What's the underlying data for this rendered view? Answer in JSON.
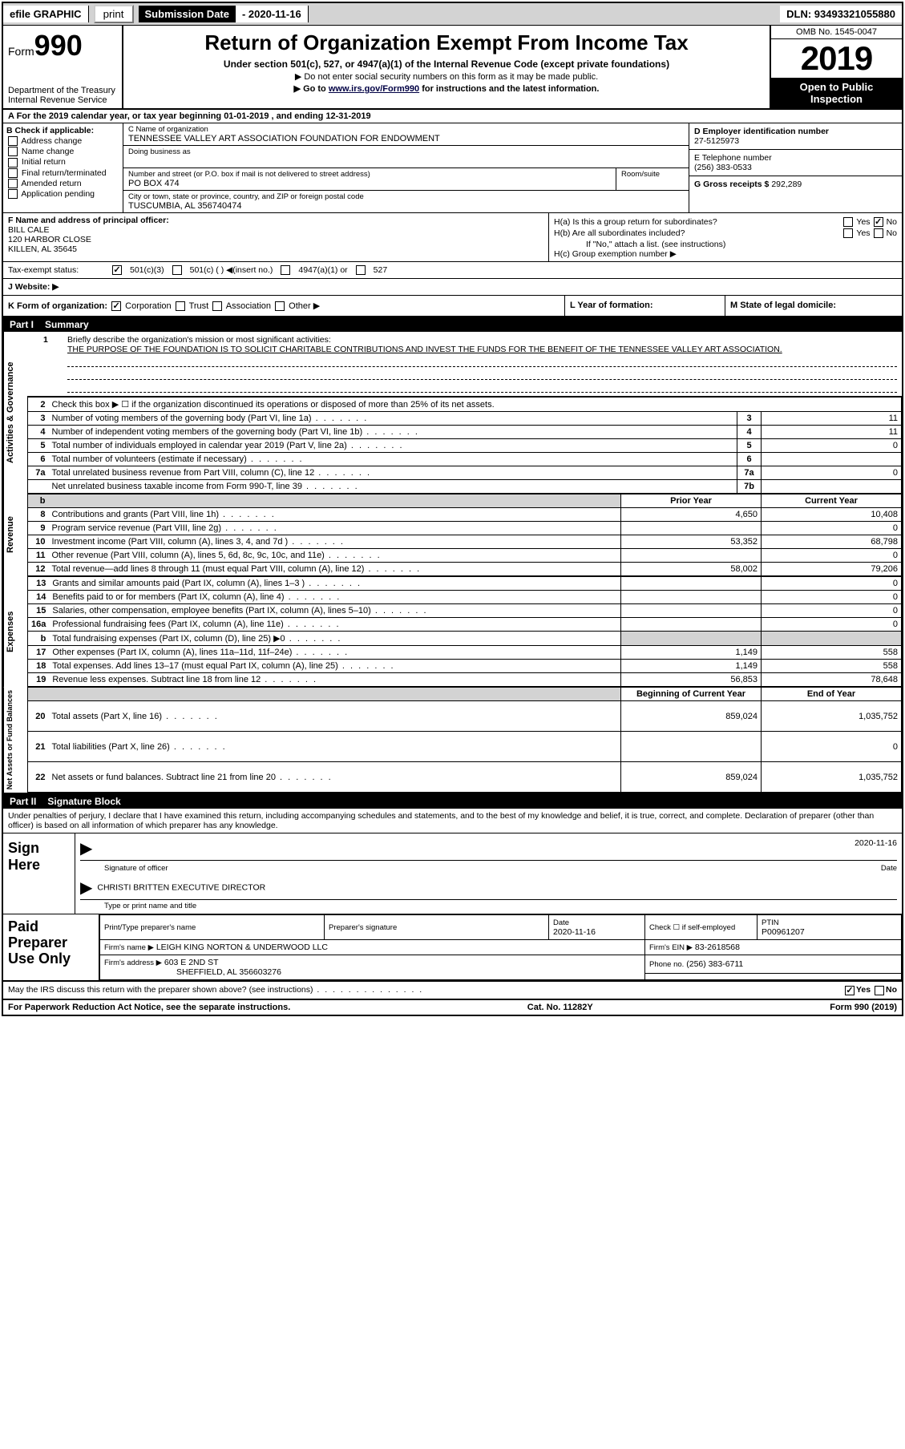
{
  "topbar": {
    "efile": "efile GRAPHIC",
    "print": "print",
    "sub_lbl": "Submission Date",
    "sub_val": "- 2020-11-16",
    "dln": "DLN: 93493321055880"
  },
  "header": {
    "form_word": "Form",
    "form_num": "990",
    "dept1": "Department of the Treasury",
    "dept2": "Internal Revenue Service",
    "title": "Return of Organization Exempt From Income Tax",
    "sub": "Under section 501(c), 527, or 4947(a)(1) of the Internal Revenue Code (except private foundations)",
    "instr1": "▶ Do not enter social security numbers on this form as it may be made public.",
    "instr2_a": "▶ Go to ",
    "instr2_link": "www.irs.gov/Form990",
    "instr2_b": " for instructions and the latest information.",
    "omb": "OMB No. 1545-0047",
    "year": "2019",
    "open": "Open to Public Inspection"
  },
  "sectA": "A For the 2019 calendar year, or tax year beginning 01-01-2019   , and ending 12-31-2019",
  "boxB": {
    "hdr": "B Check if applicable:",
    "items": [
      "Address change",
      "Name change",
      "Initial return",
      "Final return/terminated",
      "Amended return",
      "Application pending"
    ]
  },
  "boxC": {
    "name_lbl": "C Name of organization",
    "name": "TENNESSEE VALLEY ART ASSOCIATION FOUNDATION FOR ENDOWMENT",
    "dba_lbl": "Doing business as",
    "addr_lbl": "Number and street (or P.O. box if mail is not delivered to street address)",
    "addr": "PO BOX 474",
    "room_lbl": "Room/suite",
    "city_lbl": "City or town, state or province, country, and ZIP or foreign postal code",
    "city": "TUSCUMBIA, AL  356740474"
  },
  "boxD": {
    "lbl": "D Employer identification number",
    "val": "27-5125973"
  },
  "boxE": {
    "lbl": "E Telephone number",
    "val": "(256) 383-0533"
  },
  "boxG": {
    "lbl": "G Gross receipts $",
    "val": "292,289"
  },
  "boxF": {
    "lbl": "F Name and address of principal officer:",
    "name": "BILL CALE",
    "addr1": "120 HARBOR CLOSE",
    "addr2": "KILLEN, AL  35645"
  },
  "boxH": {
    "a": "H(a)  Is this a group return for subordinates?",
    "b": "H(b)  Are all subordinates included?",
    "b_note": "If \"No,\" attach a list. (see instructions)",
    "c": "H(c)  Group exemption number ▶",
    "yes": "Yes",
    "no": "No"
  },
  "taxex": {
    "lbl": "Tax-exempt status:",
    "o1": "501(c)(3)",
    "o2": "501(c) (  ) ◀(insert no.)",
    "o3": "4947(a)(1) or",
    "o4": "527"
  },
  "rowJ": "J   Website: ▶",
  "rowK": {
    "lbl": "K Form of organization:",
    "opts": [
      "Corporation",
      "Trust",
      "Association",
      "Other ▶"
    ],
    "L": "L Year of formation:",
    "M": "M State of legal domicile:"
  },
  "partI": {
    "hdr_pt": "Part I",
    "hdr_txt": "Summary"
  },
  "q1": {
    "num": "1",
    "lbl": "Briefly describe the organization's mission or most significant activities:",
    "text": "THE PURPOSE OF THE FOUNDATION IS TO SOLICIT CHARITABLE CONTRIBUTIONS AND INVEST THE FUNDS FOR THE BENEFIT OF THE TENNESSEE VALLEY ART ASSOCIATION."
  },
  "vlabels": {
    "ag": "Activities & Governance",
    "rev": "Revenue",
    "exp": "Expenses",
    "na": "Net Assets or Fund Balances"
  },
  "hdrcols": {
    "py": "Prior Year",
    "cy": "Current Year",
    "beg": "Beginning of Current Year",
    "end": "End of Year"
  },
  "ag_lines": [
    {
      "n": "2",
      "d": "Check this box ▶ ☐  if the organization discontinued its operations or disposed of more than 25% of its net assets.",
      "box": "",
      "v1": "",
      "v2": "",
      "span": true
    },
    {
      "n": "3",
      "d": "Number of voting members of the governing body (Part VI, line 1a)",
      "box": "3",
      "v": "11"
    },
    {
      "n": "4",
      "d": "Number of independent voting members of the governing body (Part VI, line 1b)",
      "box": "4",
      "v": "11"
    },
    {
      "n": "5",
      "d": "Total number of individuals employed in calendar year 2019 (Part V, line 2a)",
      "box": "5",
      "v": "0"
    },
    {
      "n": "6",
      "d": "Total number of volunteers (estimate if necessary)",
      "box": "6",
      "v": ""
    },
    {
      "n": "7a",
      "d": "Total unrelated business revenue from Part VIII, column (C), line 12",
      "box": "7a",
      "v": "0"
    },
    {
      "n": "",
      "d": "Net unrelated business taxable income from Form 990-T, line 39",
      "box": "7b",
      "v": ""
    }
  ],
  "rev_lines": [
    {
      "n": "8",
      "d": "Contributions and grants (Part VIII, line 1h)",
      "py": "4,650",
      "cy": "10,408"
    },
    {
      "n": "9",
      "d": "Program service revenue (Part VIII, line 2g)",
      "py": "",
      "cy": "0"
    },
    {
      "n": "10",
      "d": "Investment income (Part VIII, column (A), lines 3, 4, and 7d )",
      "py": "53,352",
      "cy": "68,798"
    },
    {
      "n": "11",
      "d": "Other revenue (Part VIII, column (A), lines 5, 6d, 8c, 9c, 10c, and 11e)",
      "py": "",
      "cy": "0"
    },
    {
      "n": "12",
      "d": "Total revenue—add lines 8 through 11 (must equal Part VIII, column (A), line 12)",
      "py": "58,002",
      "cy": "79,206"
    }
  ],
  "exp_lines": [
    {
      "n": "13",
      "d": "Grants and similar amounts paid (Part IX, column (A), lines 1–3 )",
      "py": "",
      "cy": "0"
    },
    {
      "n": "14",
      "d": "Benefits paid to or for members (Part IX, column (A), line 4)",
      "py": "",
      "cy": "0"
    },
    {
      "n": "15",
      "d": "Salaries, other compensation, employee benefits (Part IX, column (A), lines 5–10)",
      "py": "",
      "cy": "0"
    },
    {
      "n": "16a",
      "d": "Professional fundraising fees (Part IX, column (A), line 11e)",
      "py": "",
      "cy": "0"
    },
    {
      "n": "b",
      "d": "Total fundraising expenses (Part IX, column (D), line 25) ▶0",
      "py": "shade",
      "cy": "shade"
    },
    {
      "n": "17",
      "d": "Other expenses (Part IX, column (A), lines 11a–11d, 11f–24e)",
      "py": "1,149",
      "cy": "558"
    },
    {
      "n": "18",
      "d": "Total expenses. Add lines 13–17 (must equal Part IX, column (A), line 25)",
      "py": "1,149",
      "cy": "558"
    },
    {
      "n": "19",
      "d": "Revenue less expenses. Subtract line 18 from line 12",
      "py": "56,853",
      "cy": "78,648"
    }
  ],
  "na_lines": [
    {
      "n": "20",
      "d": "Total assets (Part X, line 16)",
      "py": "859,024",
      "cy": "1,035,752"
    },
    {
      "n": "21",
      "d": "Total liabilities (Part X, line 26)",
      "py": "",
      "cy": "0"
    },
    {
      "n": "22",
      "d": "Net assets or fund balances. Subtract line 21 from line 20",
      "py": "859,024",
      "cy": "1,035,752"
    }
  ],
  "partII": {
    "hdr_pt": "Part II",
    "hdr_txt": "Signature Block"
  },
  "sig_intro": "Under penalties of perjury, I declare that I have examined this return, including accompanying schedules and statements, and to the best of my knowledge and belief, it is true, correct, and complete. Declaration of preparer (other than officer) is based on all information of which preparer has any knowledge.",
  "sign": {
    "lbl": "Sign Here",
    "sig_of": "Signature of officer",
    "date_lbl": "Date",
    "date": "2020-11-16",
    "name": "CHRISTI BRITTEN  EXECUTIVE DIRECTOR",
    "type": "Type or print name and title"
  },
  "prep": {
    "lbl": "Paid Preparer Use Only",
    "c1": "Print/Type preparer's name",
    "c2": "Preparer's signature",
    "c3": "Date",
    "c3v": "2020-11-16",
    "c4a": "Check ☐ if self-employed",
    "c5": "PTIN",
    "c5v": "P00961207",
    "firm_lbl": "Firm's name    ▶",
    "firm": "LEIGH KING NORTON & UNDERWOOD LLC",
    "ein_lbl": "Firm's EIN ▶",
    "ein": "83-2618568",
    "addr_lbl": "Firm's address ▶",
    "addr1": "603 E 2ND ST",
    "addr2": "SHEFFIELD, AL  356603276",
    "phone_lbl": "Phone no.",
    "phone": "(256) 383-6711"
  },
  "discuss": {
    "q": "May the IRS discuss this return with the preparer shown above? (see instructions)",
    "yes": "Yes",
    "no": "No"
  },
  "footer": {
    "left": "For Paperwork Reduction Act Notice, see the separate instructions.",
    "mid": "Cat. No. 11282Y",
    "right": "Form 990 (2019)"
  }
}
